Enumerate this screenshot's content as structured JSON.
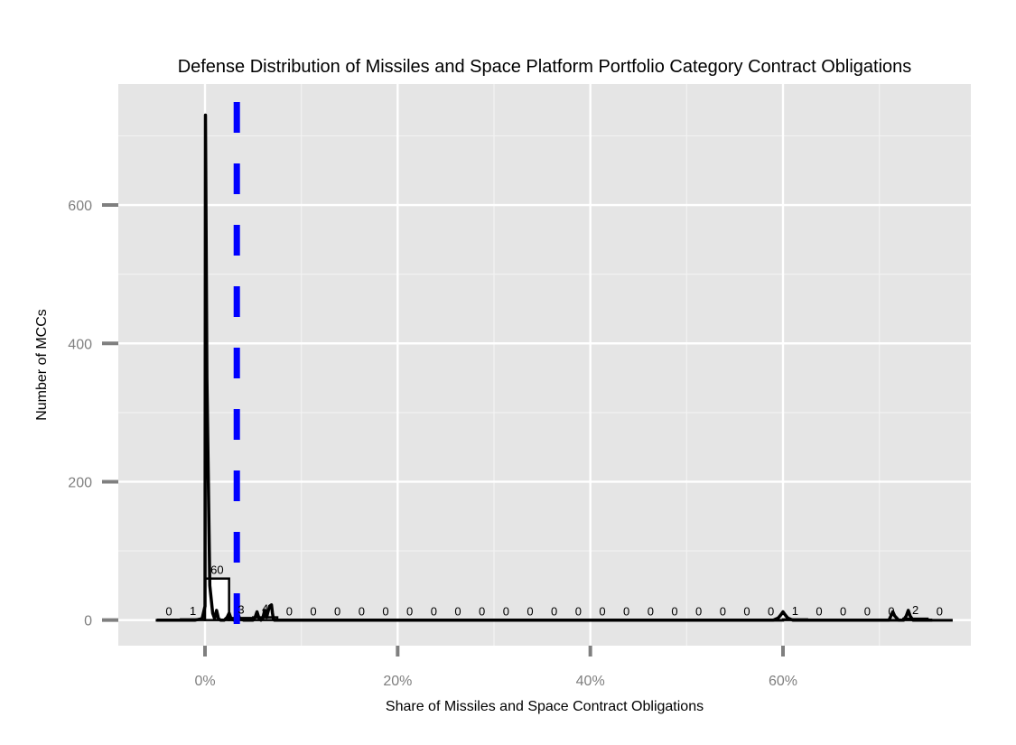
{
  "chart_data": {
    "type": "bar",
    "title": "Defense Distribution of Missiles and Space Platform Portfolio Category Contract Obligations",
    "xlabel": "Share of Missiles and Space Contract Obligations",
    "ylabel": "Number of MCCs",
    "xlim": [
      -0.09,
      0.795
    ],
    "ylim": [
      -37,
      775
    ],
    "x_ticks": [
      {
        "value": 0,
        "label": "0%"
      },
      {
        "value": 0.2,
        "label": "20%"
      },
      {
        "value": 0.4,
        "label": "40%"
      },
      {
        "value": 0.6,
        "label": "60%"
      }
    ],
    "y_ticks": [
      {
        "value": 0,
        "label": "0"
      },
      {
        "value": 200,
        "label": "200"
      },
      {
        "value": 400,
        "label": "400"
      },
      {
        "value": 600,
        "label": "600"
      }
    ],
    "grid": true,
    "histogram": {
      "bins": [
        {
          "x_start": -0.05,
          "x_end": -0.025,
          "count": 0,
          "label": "0"
        },
        {
          "x_start": -0.025,
          "x_end": 0.0,
          "count": 1,
          "label": "1"
        },
        {
          "x_start": 0.0,
          "x_end": 0.025,
          "count": 60,
          "label": "60"
        },
        {
          "x_start": 0.025,
          "x_end": 0.05,
          "count": 3,
          "label": "3"
        },
        {
          "x_start": 0.05,
          "x_end": 0.075,
          "count": 4,
          "label": "4"
        },
        {
          "x_start": 0.075,
          "x_end": 0.1,
          "count": 0,
          "label": "0"
        },
        {
          "x_start": 0.1,
          "x_end": 0.125,
          "count": 0,
          "label": "0"
        },
        {
          "x_start": 0.125,
          "x_end": 0.15,
          "count": 0,
          "label": "0"
        },
        {
          "x_start": 0.15,
          "x_end": 0.175,
          "count": 0,
          "label": "0"
        },
        {
          "x_start": 0.175,
          "x_end": 0.2,
          "count": 0,
          "label": "0"
        },
        {
          "x_start": 0.2,
          "x_end": 0.225,
          "count": 0,
          "label": "0"
        },
        {
          "x_start": 0.225,
          "x_end": 0.25,
          "count": 0,
          "label": "0"
        },
        {
          "x_start": 0.25,
          "x_end": 0.275,
          "count": 0,
          "label": "0"
        },
        {
          "x_start": 0.275,
          "x_end": 0.3,
          "count": 0,
          "label": "0"
        },
        {
          "x_start": 0.3,
          "x_end": 0.325,
          "count": 0,
          "label": "0"
        },
        {
          "x_start": 0.325,
          "x_end": 0.35,
          "count": 0,
          "label": "0"
        },
        {
          "x_start": 0.35,
          "x_end": 0.375,
          "count": 0,
          "label": "0"
        },
        {
          "x_start": 0.375,
          "x_end": 0.4,
          "count": 0,
          "label": "0"
        },
        {
          "x_start": 0.4,
          "x_end": 0.425,
          "count": 0,
          "label": "0"
        },
        {
          "x_start": 0.425,
          "x_end": 0.45,
          "count": 0,
          "label": "0"
        },
        {
          "x_start": 0.45,
          "x_end": 0.475,
          "count": 0,
          "label": "0"
        },
        {
          "x_start": 0.475,
          "x_end": 0.5,
          "count": 0,
          "label": "0"
        },
        {
          "x_start": 0.5,
          "x_end": 0.525,
          "count": 0,
          "label": "0"
        },
        {
          "x_start": 0.525,
          "x_end": 0.55,
          "count": 0,
          "label": "0"
        },
        {
          "x_start": 0.55,
          "x_end": 0.575,
          "count": 0,
          "label": "0"
        },
        {
          "x_start": 0.575,
          "x_end": 0.6,
          "count": 0,
          "label": "0"
        },
        {
          "x_start": 0.6,
          "x_end": 0.625,
          "count": 1,
          "label": "1"
        },
        {
          "x_start": 0.625,
          "x_end": 0.65,
          "count": 0,
          "label": "0"
        },
        {
          "x_start": 0.65,
          "x_end": 0.675,
          "count": 0,
          "label": "0"
        },
        {
          "x_start": 0.675,
          "x_end": 0.7,
          "count": 0,
          "label": "0"
        },
        {
          "x_start": 0.7,
          "x_end": 0.725,
          "count": 0,
          "label": "0"
        },
        {
          "x_start": 0.725,
          "x_end": 0.75,
          "count": 2,
          "label": "2"
        },
        {
          "x_start": 0.75,
          "x_end": 0.775,
          "count": 0,
          "label": "0"
        }
      ]
    },
    "density_curve": {
      "x": [
        -0.05,
        -0.01,
        -0.003,
        0.0,
        0.0005,
        0.002,
        0.005,
        0.008,
        0.01,
        0.011,
        0.012,
        0.013,
        0.014,
        0.016,
        0.02,
        0.023,
        0.025,
        0.027,
        0.03,
        0.032,
        0.034,
        0.036,
        0.04,
        0.045,
        0.05,
        0.052,
        0.054,
        0.056,
        0.058,
        0.06,
        0.062,
        0.064,
        0.065,
        0.067,
        0.069,
        0.07,
        0.071,
        0.072,
        0.073,
        0.075,
        0.08,
        0.1,
        0.2,
        0.3,
        0.4,
        0.5,
        0.58,
        0.59,
        0.595,
        0.598,
        0.6,
        0.602,
        0.605,
        0.61,
        0.62,
        0.7,
        0.71,
        0.712,
        0.714,
        0.716,
        0.72,
        0.725,
        0.728,
        0.73,
        0.732,
        0.735,
        0.74,
        0.75,
        0.755
      ],
      "y": [
        0,
        0,
        2,
        20,
        730,
        350,
        50,
        10,
        2,
        8,
        14,
        8,
        2,
        0,
        0,
        4,
        10,
        2,
        0,
        2,
        10,
        2,
        0,
        0,
        0,
        4,
        12,
        3,
        0,
        3,
        14,
        4,
        10,
        20,
        22,
        10,
        2,
        0,
        0,
        0,
        0,
        0,
        0,
        0,
        0,
        0,
        0,
        0,
        3,
        8,
        12,
        8,
        3,
        0,
        0,
        0,
        0,
        6,
        12,
        6,
        0,
        0,
        6,
        14,
        6,
        0,
        0,
        0,
        0
      ]
    },
    "reference_line": {
      "x": 0.033,
      "style": "dashed",
      "color": "#0000ff"
    },
    "colors": {
      "panel_background": "#e5e5e5",
      "grid_major": "#ffffff",
      "grid_minor": "#f2f2f2",
      "curve": "#000000",
      "bar_fill": "#ffffff",
      "bar_outline": "#000000",
      "tick_text": "#7f7f7f",
      "tick_mark": "#7f7f7f"
    }
  }
}
